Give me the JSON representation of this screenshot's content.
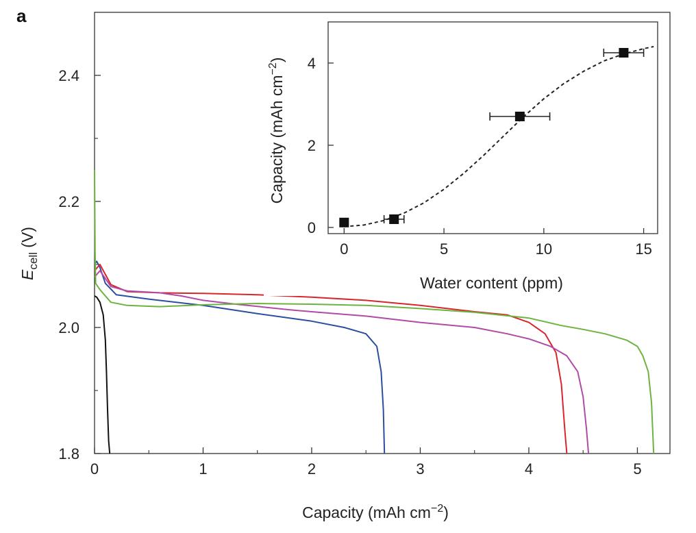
{
  "panel_label": "a",
  "chart_data": [
    {
      "type": "line",
      "ylabel_main": "E",
      "ylabel_sub": "cell",
      "ylabel_unit": " (V)",
      "xlabel_main": "Capacity (mAh cm",
      "xlabel_sup": "−2",
      "xlabel_end": ")",
      "xlim": [
        0,
        5.3
      ],
      "ylim": [
        1.8,
        2.5
      ],
      "x_ticks": [
        0,
        1,
        2,
        3,
        4,
        5
      ],
      "x_minor_ticks": [
        0.5,
        1.5,
        2.5,
        3.5,
        4.5
      ],
      "y_ticks": [
        1.8,
        2.0,
        2.2,
        2.4
      ],
      "y_minor_ticks": [
        1.9,
        2.1,
        2.3
      ],
      "grid": false,
      "series": [
        {
          "color": "#111111",
          "points": [
            [
              0,
              2.05
            ],
            [
              0.02,
              2.048
            ],
            [
              0.05,
              2.04
            ],
            [
              0.08,
              2.02
            ],
            [
              0.1,
              1.98
            ],
            [
              0.11,
              1.93
            ],
            [
              0.12,
              1.87
            ],
            [
              0.13,
              1.82
            ],
            [
              0.14,
              1.8
            ]
          ]
        },
        {
          "color": "#2b4ea0",
          "points": [
            [
              0,
              2.1
            ],
            [
              0.02,
              2.105
            ],
            [
              0.05,
              2.095
            ],
            [
              0.1,
              2.07
            ],
            [
              0.2,
              2.052
            ],
            [
              0.5,
              2.045
            ],
            [
              1.0,
              2.035
            ],
            [
              1.5,
              2.022
            ],
            [
              2.0,
              2.01
            ],
            [
              2.3,
              2.0
            ],
            [
              2.5,
              1.99
            ],
            [
              2.6,
              1.97
            ],
            [
              2.64,
              1.93
            ],
            [
              2.66,
              1.87
            ],
            [
              2.67,
              1.8
            ]
          ]
        },
        {
          "color": "#d8262b",
          "points": [
            [
              0,
              2.09
            ],
            [
              0.05,
              2.1
            ],
            [
              0.15,
              2.068
            ],
            [
              0.3,
              2.057
            ],
            [
              0.6,
              2.055
            ],
            [
              1.0,
              2.054
            ],
            [
              1.5,
              2.052
            ],
            [
              2.0,
              2.048
            ],
            [
              2.5,
              2.043
            ],
            [
              3.0,
              2.035
            ],
            [
              3.5,
              2.025
            ],
            [
              3.8,
              2.02
            ],
            [
              4.0,
              2.008
            ],
            [
              4.15,
              1.99
            ],
            [
              4.25,
              1.96
            ],
            [
              4.3,
              1.91
            ],
            [
              4.33,
              1.84
            ],
            [
              4.35,
              1.8
            ]
          ]
        },
        {
          "color": "#b04aa8",
          "points": [
            [
              0,
              2.08
            ],
            [
              0.05,
              2.09
            ],
            [
              0.15,
              2.065
            ],
            [
              0.3,
              2.058
            ],
            [
              0.6,
              2.055
            ],
            [
              0.8,
              2.05
            ],
            [
              1.0,
              2.043
            ],
            [
              1.3,
              2.037
            ],
            [
              1.8,
              2.028
            ],
            [
              2.0,
              2.025
            ],
            [
              2.5,
              2.018
            ],
            [
              3.0,
              2.008
            ],
            [
              3.5,
              2.0
            ],
            [
              3.8,
              1.99
            ],
            [
              4.0,
              1.982
            ],
            [
              4.2,
              1.97
            ],
            [
              4.35,
              1.955
            ],
            [
              4.45,
              1.93
            ],
            [
              4.5,
              1.89
            ],
            [
              4.53,
              1.84
            ],
            [
              4.55,
              1.8
            ]
          ]
        },
        {
          "color": "#6db33f",
          "points": [
            [
              0,
              2.25
            ],
            [
              0.005,
              2.12
            ],
            [
              0.01,
              2.07
            ],
            [
              0.05,
              2.06
            ],
            [
              0.15,
              2.04
            ],
            [
              0.3,
              2.035
            ],
            [
              0.6,
              2.033
            ],
            [
              1.0,
              2.036
            ],
            [
              1.5,
              2.038
            ],
            [
              2.0,
              2.037
            ],
            [
              2.5,
              2.035
            ],
            [
              3.0,
              2.03
            ],
            [
              3.5,
              2.024
            ],
            [
              4.0,
              2.015
            ],
            [
              4.3,
              2.003
            ],
            [
              4.5,
              1.997
            ],
            [
              4.7,
              1.99
            ],
            [
              4.8,
              1.985
            ],
            [
              4.9,
              1.98
            ],
            [
              5.0,
              1.97
            ],
            [
              5.05,
              1.955
            ],
            [
              5.1,
              1.93
            ],
            [
              5.13,
              1.88
            ],
            [
              5.15,
              1.8
            ]
          ]
        }
      ]
    },
    {
      "type": "scatter",
      "ylabel_main": "Capacity (mAh cm",
      "ylabel_sup": "−2",
      "ylabel_end": ")",
      "xlabel": "Water content (ppm)",
      "xlim": [
        -0.8,
        15.7
      ],
      "ylim": [
        -0.15,
        5.0
      ],
      "x_ticks": [
        0,
        5,
        10,
        15
      ],
      "y_ticks": [
        0,
        2,
        4
      ],
      "grid": false,
      "points": [
        {
          "x": 0,
          "y": 0.12,
          "xerr": 0
        },
        {
          "x": 2.5,
          "y": 0.2,
          "xerr": 0.5
        },
        {
          "x": 8.8,
          "y": 2.7,
          "xerr": 1.5
        },
        {
          "x": 14.0,
          "y": 4.25,
          "xerr": 1.0
        }
      ],
      "fit_curve": [
        [
          0,
          0.02
        ],
        [
          1,
          0.06
        ],
        [
          2,
          0.17
        ],
        [
          3,
          0.35
        ],
        [
          4,
          0.6
        ],
        [
          5,
          0.93
        ],
        [
          6,
          1.32
        ],
        [
          7,
          1.76
        ],
        [
          8,
          2.23
        ],
        [
          9,
          2.7
        ],
        [
          10,
          3.13
        ],
        [
          11,
          3.5
        ],
        [
          12,
          3.8
        ],
        [
          13,
          4.05
        ],
        [
          14,
          4.22
        ],
        [
          15,
          4.35
        ],
        [
          15.5,
          4.4
        ]
      ]
    }
  ]
}
